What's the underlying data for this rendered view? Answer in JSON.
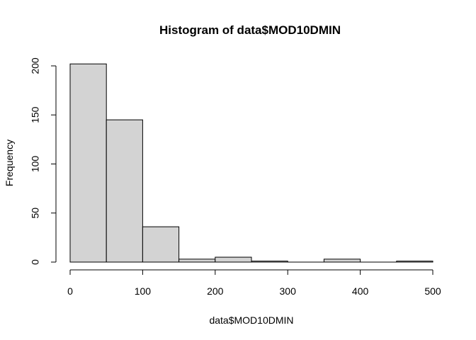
{
  "chart_data": {
    "type": "bar",
    "subtype": "histogram",
    "title": "Histogram of data$MOD10DMIN",
    "xlabel": "data$MOD10DMIN",
    "ylabel": "Frequency",
    "bins": [
      {
        "from": 0,
        "to": 50,
        "count": 202
      },
      {
        "from": 50,
        "to": 100,
        "count": 145
      },
      {
        "from": 100,
        "to": 150,
        "count": 36
      },
      {
        "from": 150,
        "to": 200,
        "count": 3
      },
      {
        "from": 200,
        "to": 250,
        "count": 5
      },
      {
        "from": 250,
        "to": 300,
        "count": 1
      },
      {
        "from": 300,
        "to": 350,
        "count": 0
      },
      {
        "from": 350,
        "to": 400,
        "count": 3
      },
      {
        "from": 400,
        "to": 450,
        "count": 0
      },
      {
        "from": 450,
        "to": 500,
        "count": 1
      }
    ],
    "xlim": [
      0,
      500
    ],
    "ylim": [
      0,
      202
    ],
    "x_ticks": [
      "0",
      "100",
      "200",
      "300",
      "400",
      "500"
    ],
    "y_ticks": [
      "0",
      "50",
      "100",
      "150",
      "200"
    ],
    "grid": false,
    "bar_color": "#d3d3d3",
    "border_color": "#000000"
  }
}
